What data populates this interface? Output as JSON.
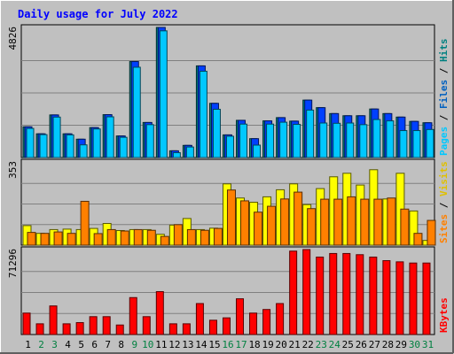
{
  "chart_data": {
    "type": "bar",
    "title": "Daily usage for July 2022",
    "categories": [
      "1",
      "2",
      "3",
      "4",
      "5",
      "6",
      "7",
      "8",
      "9",
      "10",
      "11",
      "12",
      "13",
      "14",
      "15",
      "16",
      "17",
      "18",
      "19",
      "20",
      "21",
      "22",
      "23",
      "24",
      "25",
      "26",
      "27",
      "28",
      "29",
      "30",
      "31"
    ],
    "weekend_days": [
      "2",
      "3",
      "9",
      "10",
      "16",
      "17",
      "23",
      "24",
      "30",
      "31"
    ],
    "panels": [
      {
        "id": "hits-files-pages",
        "ymax_label": "4826",
        "ymax": 4826,
        "right_labels": [
          {
            "text": "Pages",
            "color": "#00c8ff"
          },
          {
            "text": " / ",
            "color": "#000000"
          },
          {
            "text": "Files",
            "color": "#0060c0"
          },
          {
            "text": " / ",
            "color": "#000000"
          },
          {
            "text": "Hits",
            "color": "#008080"
          }
        ],
        "series": [
          {
            "name": "Hits",
            "color": "#008080",
            "values": [
              1140,
              880,
              1580,
              880,
              680,
              1110,
              1590,
              800,
              3560,
              1300,
              4826,
              250,
              450,
              3400,
              2010,
              840,
              1380,
              700,
              1360,
              1480,
              1350,
              2130,
              1850,
              1630,
              1550,
              1550,
              1800,
              1630,
              1500,
              1340,
              1290
            ]
          },
          {
            "name": "Files",
            "color": "#0040ff",
            "values": [
              1140,
              880,
              1580,
              880,
              680,
              1110,
              1590,
              800,
              3560,
              1300,
              4826,
              250,
              450,
              3400,
              2010,
              840,
              1380,
              700,
              1360,
              1480,
              1350,
              2130,
              1850,
              1630,
              1550,
              1550,
              1800,
              1630,
              1500,
              1340,
              1290
            ]
          },
          {
            "name": "Pages",
            "color": "#00c8ff",
            "values": [
              1080,
              850,
              1500,
              840,
              470,
              1060,
              1510,
              750,
              3350,
              1220,
              4700,
              180,
              390,
              3200,
              1790,
              790,
              1240,
              460,
              1240,
              1310,
              1230,
              1760,
              1280,
              1270,
              1280,
              1220,
              1410,
              1360,
              1000,
              1000,
              1040
            ]
          }
        ]
      },
      {
        "id": "visits-sites",
        "ymax_label": "353",
        "ymax": 353,
        "right_labels": [
          {
            "text": "Sites",
            "color": "#ff8000"
          },
          {
            "text": " / ",
            "color": "#000000"
          },
          {
            "text": "Visits",
            "color": "#e0c000"
          }
        ],
        "series": [
          {
            "name": "Visits",
            "color": "#ffff00",
            "values": [
              83,
              50,
              66,
              68,
              66,
              71,
              92,
              62,
              66,
              66,
              46,
              85,
              113,
              66,
              72,
              260,
              200,
              182,
              205,
              235,
              260,
              172,
              240,
              290,
              305,
              255,
              320,
              196,
              305,
              145,
              20
            ]
          },
          {
            "name": "Sites",
            "color": "#ff8000",
            "values": [
              54,
              50,
              56,
              50,
              186,
              49,
              66,
              60,
              66,
              63,
              37,
              87,
              66,
              63,
              71,
              234,
              188,
              140,
              165,
              196,
              225,
              155,
              195,
              195,
              205,
              195,
              195,
              200,
              153,
              50,
              105
            ]
          }
        ]
      },
      {
        "id": "kbytes",
        "ymax_label": "71296",
        "ymax": 71296,
        "right_labels": [
          {
            "text": "KBytes",
            "color": "#ff0000"
          }
        ],
        "series": [
          {
            "name": "KBytes",
            "color": "#ff0000",
            "values": [
              18000,
              9000,
              24000,
              9000,
              10000,
              15000,
              15000,
              8000,
              31000,
              15000,
              36000,
              9000,
              9000,
              26000,
              12000,
              14000,
              30000,
              18000,
              21000,
              26000,
              70000,
              71296,
              65000,
              68000,
              68000,
              67000,
              65000,
              62000,
              61000,
              60000,
              60000
            ]
          }
        ]
      }
    ]
  }
}
